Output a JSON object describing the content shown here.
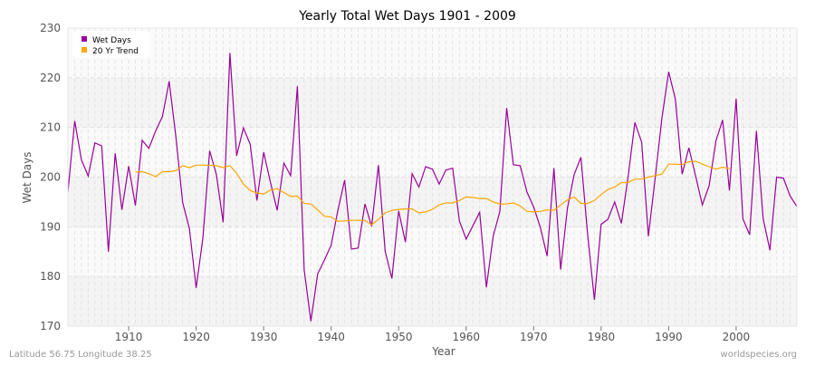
{
  "chart_data": {
    "type": "line",
    "title": "Yearly Total Wet Days 1901 - 2009",
    "xlabel": "Year",
    "ylabel": "Wet Days",
    "xlim": [
      1901,
      2009
    ],
    "ylim": [
      170,
      230
    ],
    "xticks": [
      1910,
      1920,
      1930,
      1940,
      1950,
      1960,
      1970,
      1980,
      1990,
      2000
    ],
    "yticks": [
      170,
      180,
      190,
      200,
      210,
      220,
      230
    ],
    "grid": true,
    "legend": "top-left",
    "series": [
      {
        "name": "Wet Days",
        "color": "#990099",
        "x_start": 1901,
        "values": [
          197,
          211.3,
          203.5,
          200.2,
          206.9,
          206.3,
          185,
          204.8,
          193.4,
          202.2,
          194.3,
          207.4,
          205.8,
          209.3,
          212.2,
          219.3,
          208,
          194.9,
          189.6,
          177.7,
          187.8,
          205.3,
          200.5,
          190.9,
          225,
          204.3,
          209.9,
          206.6,
          195.3,
          205,
          199,
          193.3,
          202.8,
          200.3,
          218.3,
          181.3,
          171,
          180.5,
          183.3,
          186.3,
          193.3,
          199.4,
          185.5,
          185.7,
          194.6,
          190.1,
          202.4,
          185.1,
          179.6,
          193.2,
          186.9,
          200.7,
          198,
          202.1,
          201.6,
          198.6,
          201.4,
          201.8,
          191.2,
          187.5,
          190.2,
          192.9,
          177.8,
          188.1,
          193.1,
          213.9,
          202.5,
          202.3,
          197,
          194,
          189.8,
          184.1,
          201.8,
          181.4,
          193.7,
          200.5,
          204,
          188.5,
          175.3,
          190.5,
          191.5,
          195,
          190.7,
          200.2,
          211,
          207,
          188.1,
          199.8,
          211.8,
          221.2,
          215.7,
          200.6,
          205.9,
          200.2,
          194.4,
          198.3,
          207.3,
          211.5,
          197.3,
          215.8,
          191.6,
          188.4,
          209.3,
          191.7,
          185.3,
          200,
          199.8,
          196.2,
          194.1
        ]
      },
      {
        "name": "20 Yr Trend",
        "color": "#ffa500",
        "x_start": 1911,
        "values": [
          201,
          201.1,
          200.7,
          200.1,
          201.1,
          201.1,
          201.3,
          202.3,
          201.9,
          202.4,
          202.4,
          202.4,
          202.3,
          201.9,
          202.3,
          200.8,
          198.6,
          197.3,
          196.8,
          196.6,
          197.4,
          197.7,
          196.9,
          196.1,
          196.2,
          194.7,
          194.6,
          193.4,
          192.1,
          192,
          191.1,
          191.2,
          191.3,
          191.3,
          191.3,
          190.4,
          191.5,
          192.8,
          193.3,
          193.5,
          193.6,
          193.6,
          192.8,
          193,
          193.5,
          194.4,
          194.8,
          194.8,
          195.3,
          196,
          195.9,
          195.7,
          195.7,
          195,
          194.6,
          194.6,
          194.8,
          194.2,
          193.1,
          193,
          193.1,
          193.4,
          193.3,
          194.4,
          195.4,
          196,
          194.7,
          194.7,
          195.3,
          196.5,
          197.5,
          198,
          198.9,
          198.9,
          199.6,
          199.6,
          200,
          200.3,
          200.6,
          202.6,
          202.6,
          202.5,
          203.1,
          203.2,
          202.6,
          202.1,
          201.6,
          202,
          201.7
        ]
      }
    ]
  },
  "footer": {
    "location": "Latitude 56.75 Longitude 38.25",
    "source": "worldspecies.org"
  }
}
